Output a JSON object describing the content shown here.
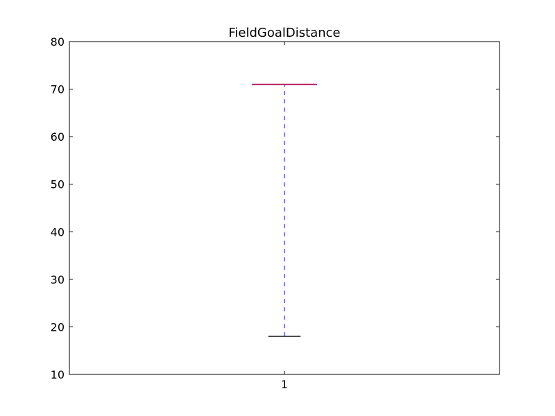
{
  "chart_data": {
    "type": "box",
    "title": "FieldGoalDistance",
    "xlabel": "",
    "ylabel": "",
    "categories": [
      "1"
    ],
    "ylim": [
      10,
      80
    ],
    "yticks": [
      "10",
      "20",
      "30",
      "40",
      "50",
      "60",
      "70",
      "80"
    ],
    "boxes": [
      {
        "category": "1",
        "whisker_low": 18,
        "q1": 71,
        "median": 71,
        "q3": 71,
        "whisker_high": 71
      }
    ],
    "grid": false,
    "colors": {
      "median": "#bf2a5a",
      "box": "#3a3aff",
      "whisker": "#0000ff",
      "cap": "#000000",
      "axes": "#000000"
    }
  }
}
